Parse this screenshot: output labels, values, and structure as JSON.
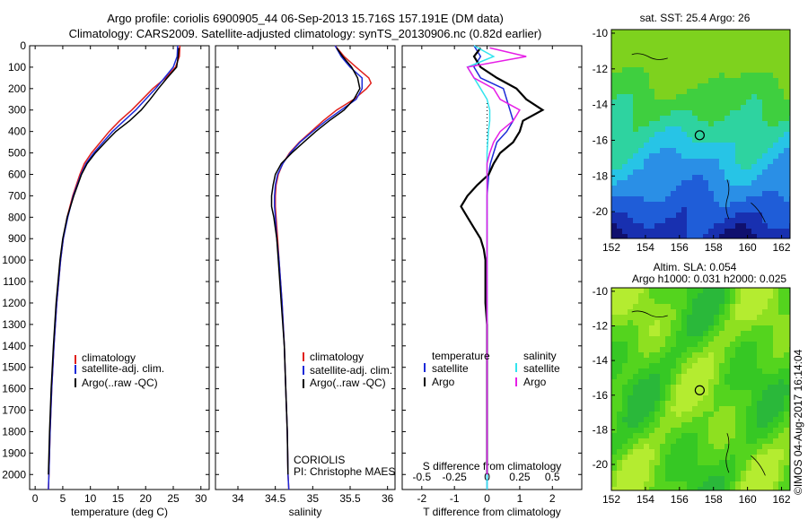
{
  "header": {
    "line1": "Argo profile: coriolis 6900905_44 06-Sep-2013 15.716S 157.191E (DM data)",
    "line2": "Climatology: CARS2009. Satellite-adjusted climatology: synTS_20130906.nc (0.82d earlier)"
  },
  "legend": {
    "climatology": "climatology",
    "satellite_adj": "satellite-adj. clim.",
    "argo": "Argo(..raw -QC)",
    "diff_temperature_title": "temperature",
    "diff_salinity_title": "salinity",
    "diff_satellite": "satellite",
    "diff_argo": "Argo"
  },
  "footer": {
    "org": "CORIOLIS",
    "pi": "PI: Christophe MAES",
    "copyright": "©IMOS 04-Aug-2017 16:14:04"
  },
  "maps": {
    "sst_title": "sat. SST: 25.4 Argo: 26",
    "sla_title1": "Altim. SLA: 0.054",
    "sla_title2": "Argo h1000: 0.031 h2000: 0.025",
    "x_ticks": [
      152,
      154,
      156,
      158,
      160,
      162
    ],
    "y_ticks": [
      -10,
      -12,
      -14,
      -16,
      -18,
      -20
    ],
    "xlim": [
      152,
      162.5
    ],
    "ylim": [
      -21.5,
      -9.8
    ],
    "float_position": {
      "lon": 157.191,
      "lat": -15.716
    }
  },
  "colors": {
    "climatology": "#e0201c",
    "satellite": "#1c2ad8",
    "argo": "#000000",
    "diff_sal_satellite": "#33e4ee",
    "diff_sal_argo": "#e61ee6"
  },
  "chart_data": [
    {
      "type": "line",
      "xlabel": "temperature (deg C)",
      "ylabel": "",
      "xlim": [
        -1,
        31.5
      ],
      "ylim": [
        0,
        2070
      ],
      "x_ticks": [
        0,
        5,
        10,
        15,
        20,
        25,
        30
      ],
      "y_ticks": [
        0,
        100,
        200,
        300,
        400,
        500,
        600,
        700,
        800,
        900,
        1000,
        1100,
        1200,
        1300,
        1400,
        1500,
        1600,
        1700,
        1800,
        1900,
        2000
      ],
      "y_axis": "depth (reversed)",
      "series": [
        {
          "name": "climatology",
          "depth": [
            0,
            50,
            100,
            150,
            200,
            250,
            300,
            350,
            400,
            450,
            500,
            550,
            600,
            700,
            800,
            900,
            1000,
            1200,
            1400,
            1600,
            1800,
            2000,
            2070
          ],
          "values": [
            26.2,
            26.1,
            25.4,
            23.6,
            21.3,
            19.4,
            17.5,
            15.3,
            13.4,
            11.8,
            10.2,
            8.9,
            8.1,
            6.8,
            5.8,
            5.1,
            4.6,
            3.9,
            3.4,
            3.0,
            2.7,
            2.5,
            2.4
          ]
        },
        {
          "name": "satellite-adj. clim.",
          "depth": [
            0,
            50,
            100,
            150,
            200,
            250,
            300,
            350,
            400,
            450,
            500,
            550,
            600,
            700,
            800,
            900,
            1000,
            1200,
            1400,
            1600,
            1800,
            2000,
            2070
          ],
          "values": [
            25.8,
            25.7,
            25.0,
            23.4,
            21.8,
            20.0,
            18.2,
            16.1,
            14.0,
            12.3,
            10.6,
            9.2,
            8.3,
            6.9,
            5.9,
            5.1,
            4.6,
            3.9,
            3.4,
            3.0,
            2.7,
            2.5,
            2.4
          ]
        },
        {
          "name": "Argo(..raw -QC)",
          "depth": [
            10,
            50,
            100,
            150,
            200,
            250,
            300,
            350,
            400,
            450,
            500,
            550,
            600,
            700,
            800,
            900,
            1000,
            1200,
            1400,
            1600,
            1800,
            2000
          ],
          "values": [
            26.0,
            25.9,
            25.6,
            23.9,
            22.3,
            20.8,
            19.2,
            17.1,
            14.6,
            12.7,
            10.9,
            9.4,
            8.4,
            7.0,
            5.8,
            5.0,
            4.5,
            3.8,
            3.3,
            2.9,
            2.6,
            2.4
          ]
        }
      ]
    },
    {
      "type": "line",
      "xlabel": "salinity",
      "ylabel": "",
      "xlim": [
        33.7,
        36.1
      ],
      "ylim": [
        0,
        2070
      ],
      "x_ticks": [
        34,
        34.5,
        35,
        35.5,
        36
      ],
      "x_tick_labels": [
        "34",
        "34.5",
        "35",
        "35.5",
        "36"
      ],
      "series": [
        {
          "name": "climatology",
          "depth": [
            0,
            50,
            100,
            150,
            175,
            200,
            250,
            300,
            350,
            400,
            450,
            500,
            550,
            600,
            650,
            700,
            750,
            800,
            900,
            1000,
            1200,
            1400,
            1600,
            1800,
            2000,
            2070
          ],
          "values": [
            35.3,
            35.42,
            35.58,
            35.75,
            35.78,
            35.72,
            35.55,
            35.32,
            35.14,
            34.98,
            34.82,
            34.69,
            34.6,
            34.54,
            34.51,
            34.5,
            34.5,
            34.51,
            34.53,
            34.55,
            34.59,
            34.62,
            34.64,
            34.66,
            34.67,
            34.68
          ]
        },
        {
          "name": "satellite-adj. clim.",
          "depth": [
            0,
            50,
            100,
            150,
            200,
            250,
            300,
            350,
            400,
            450,
            500,
            550,
            600,
            650,
            700,
            750,
            800,
            900,
            1000,
            1200,
            1400,
            1600,
            1800,
            2000,
            2070
          ],
          "values": [
            35.3,
            35.38,
            35.5,
            35.66,
            35.66,
            35.58,
            35.38,
            35.18,
            35.0,
            34.83,
            34.7,
            34.6,
            34.53,
            34.5,
            34.49,
            34.49,
            34.5,
            34.52,
            34.55,
            34.59,
            34.62,
            34.64,
            34.66,
            34.67,
            34.68
          ]
        },
        {
          "name": "Argo(..raw -QC)",
          "depth": [
            10,
            50,
            100,
            150,
            200,
            250,
            300,
            350,
            400,
            450,
            500,
            550,
            600,
            650,
            700,
            750,
            800,
            900,
            1000,
            1200,
            1400,
            1600,
            1800,
            2000
          ],
          "values": [
            35.32,
            35.4,
            35.52,
            35.6,
            35.63,
            35.55,
            35.42,
            35.22,
            35.04,
            34.88,
            34.72,
            34.58,
            34.5,
            34.47,
            34.45,
            34.45,
            34.48,
            34.52,
            34.54,
            34.58,
            34.62,
            34.64,
            34.66,
            34.67
          ]
        }
      ]
    },
    {
      "type": "line",
      "xlabel": "T difference from climatology",
      "x2label": "S difference from climatology",
      "xlim": [
        -2.6,
        2.9
      ],
      "ylim": [
        0,
        2070
      ],
      "x_ticks": [
        -2,
        -1,
        0,
        1,
        2
      ],
      "x2_ticks": [
        -0.5,
        -0.25,
        0,
        0.25,
        0.5
      ],
      "x2_tick_labels": [
        "-0.5",
        "-0.25",
        "0",
        "0.25",
        "0.5"
      ],
      "series": [
        {
          "name": "temperature satellite",
          "depth": [
            0,
            50,
            100,
            150,
            200,
            250,
            300,
            350,
            400,
            450,
            500,
            550,
            600,
            700,
            800,
            1000,
            2070
          ],
          "values": [
            -0.4,
            -0.2,
            -0.4,
            -0.2,
            0.5,
            0.6,
            0.7,
            0.8,
            0.6,
            0.3,
            0.2,
            0.1,
            0.05,
            0.0,
            0.0,
            0.0,
            0.0
          ]
        },
        {
          "name": "temperature Argo",
          "depth": [
            10,
            50,
            100,
            150,
            200,
            250,
            300,
            350,
            400,
            450,
            500,
            550,
            600,
            650,
            700,
            750,
            800,
            850,
            900,
            950,
            1000,
            1100,
            1200,
            1300,
            2000
          ],
          "values": [
            -0.2,
            -0.4,
            -0.2,
            0.3,
            0.9,
            1.2,
            1.7,
            1.1,
            1.0,
            0.8,
            0.4,
            0.2,
            0.05,
            -0.3,
            -0.6,
            -0.8,
            -0.6,
            -0.4,
            -0.2,
            -0.1,
            -0.05,
            -0.05,
            -0.05,
            0.0,
            0.0
          ]
        },
        {
          "name": "salinity satellite",
          "depth": [
            0,
            50,
            100,
            150,
            200,
            250,
            300,
            350,
            400,
            500,
            600,
            700,
            800,
            1000,
            2070
          ],
          "values": [
            -0.1,
            0.05,
            -0.15,
            -0.1,
            -0.05,
            0.0,
            0.02,
            0.02,
            0.01,
            0.0,
            0.0,
            0.0,
            0.0,
            0.0,
            0.0
          ]
        },
        {
          "name": "salinity Argo",
          "depth": [
            10,
            50,
            100,
            150,
            200,
            250,
            300,
            350,
            400,
            450,
            500,
            550,
            600,
            700,
            800,
            1000,
            2000
          ],
          "values": [
            0.02,
            0.3,
            -0.15,
            -0.1,
            0.05,
            0.1,
            0.25,
            0.2,
            0.1,
            0.05,
            0.02,
            0.0,
            0.0,
            0.0,
            0.0,
            0.0,
            0.0
          ]
        }
      ]
    }
  ]
}
